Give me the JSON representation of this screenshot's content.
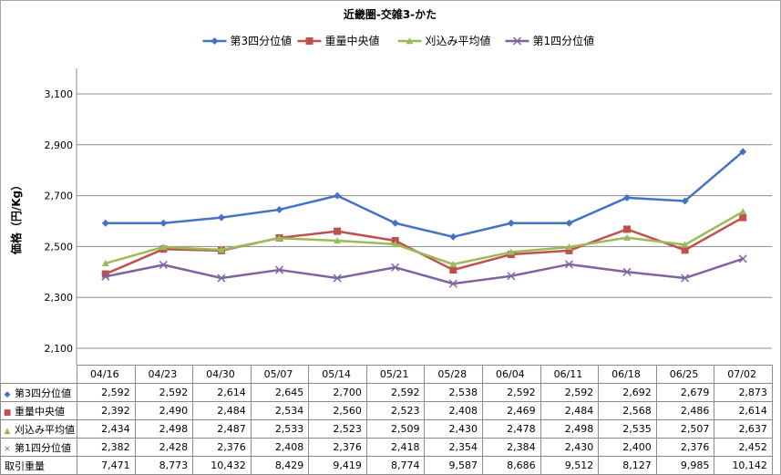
{
  "chart_data": {
    "type": "line",
    "title": "近畿圏-交雑3-かた",
    "ylabel": "価格（円/Kg）",
    "xlabel": "",
    "ylim": [
      2100,
      3100
    ],
    "yticks": [
      2100,
      2300,
      2500,
      2700,
      2900,
      3100
    ],
    "ytick_labels": [
      "2,100",
      "2,300",
      "2,500",
      "2,700",
      "2,900",
      "3,100"
    ],
    "grid": true,
    "legend": "top",
    "categories": [
      "04/16",
      "04/23",
      "04/30",
      "05/07",
      "05/14",
      "05/21",
      "05/28",
      "06/04",
      "06/11",
      "06/18",
      "06/25",
      "07/02"
    ],
    "series": [
      {
        "name": "第3四分位値",
        "color": "#4472c4",
        "marker": "diamond",
        "values": [
          2592,
          2592,
          2614,
          2645,
          2700,
          2592,
          2538,
          2592,
          2592,
          2692,
          2679,
          2873
        ],
        "labels": [
          "2,592",
          "2,592",
          "2,614",
          "2,645",
          "2,700",
          "2,592",
          "2,538",
          "2,592",
          "2,592",
          "2,692",
          "2,679",
          "2,873"
        ]
      },
      {
        "name": "重量中央値",
        "color": "#c0504d",
        "marker": "square",
        "values": [
          2392,
          2490,
          2484,
          2534,
          2560,
          2523,
          2408,
          2469,
          2484,
          2568,
          2486,
          2614
        ],
        "labels": [
          "2,392",
          "2,490",
          "2,484",
          "2,534",
          "2,560",
          "2,523",
          "2,408",
          "2,469",
          "2,484",
          "2,568",
          "2,486",
          "2,614"
        ]
      },
      {
        "name": "刈込み平均値",
        "color": "#9bbb59",
        "marker": "triangle",
        "values": [
          2434,
          2498,
          2487,
          2533,
          2523,
          2509,
          2430,
          2478,
          2498,
          2535,
          2507,
          2637
        ],
        "labels": [
          "2,434",
          "2,498",
          "2,487",
          "2,533",
          "2,523",
          "2,509",
          "2,430",
          "2,478",
          "2,498",
          "2,535",
          "2,507",
          "2,637"
        ]
      },
      {
        "name": "第1四分位値",
        "color": "#8064a2",
        "marker": "x",
        "values": [
          2382,
          2428,
          2376,
          2408,
          2376,
          2418,
          2354,
          2384,
          2430,
          2400,
          2376,
          2452
        ],
        "labels": [
          "2,382",
          "2,428",
          "2,376",
          "2,408",
          "2,376",
          "2,418",
          "2,354",
          "2,384",
          "2,430",
          "2,400",
          "2,376",
          "2,452"
        ]
      }
    ],
    "table_extra_rows": [
      {
        "name": "取引重量",
        "values": [
          7471,
          8773,
          10432,
          8429,
          9419,
          8774,
          9587,
          8686,
          9512,
          8127,
          9985,
          10142
        ],
        "labels": [
          "7,471",
          "8,773",
          "10,432",
          "8,429",
          "9,419",
          "8,774",
          "9,587",
          "8,686",
          "9,512",
          "8,127",
          "9,985",
          "10,142"
        ]
      }
    ]
  }
}
